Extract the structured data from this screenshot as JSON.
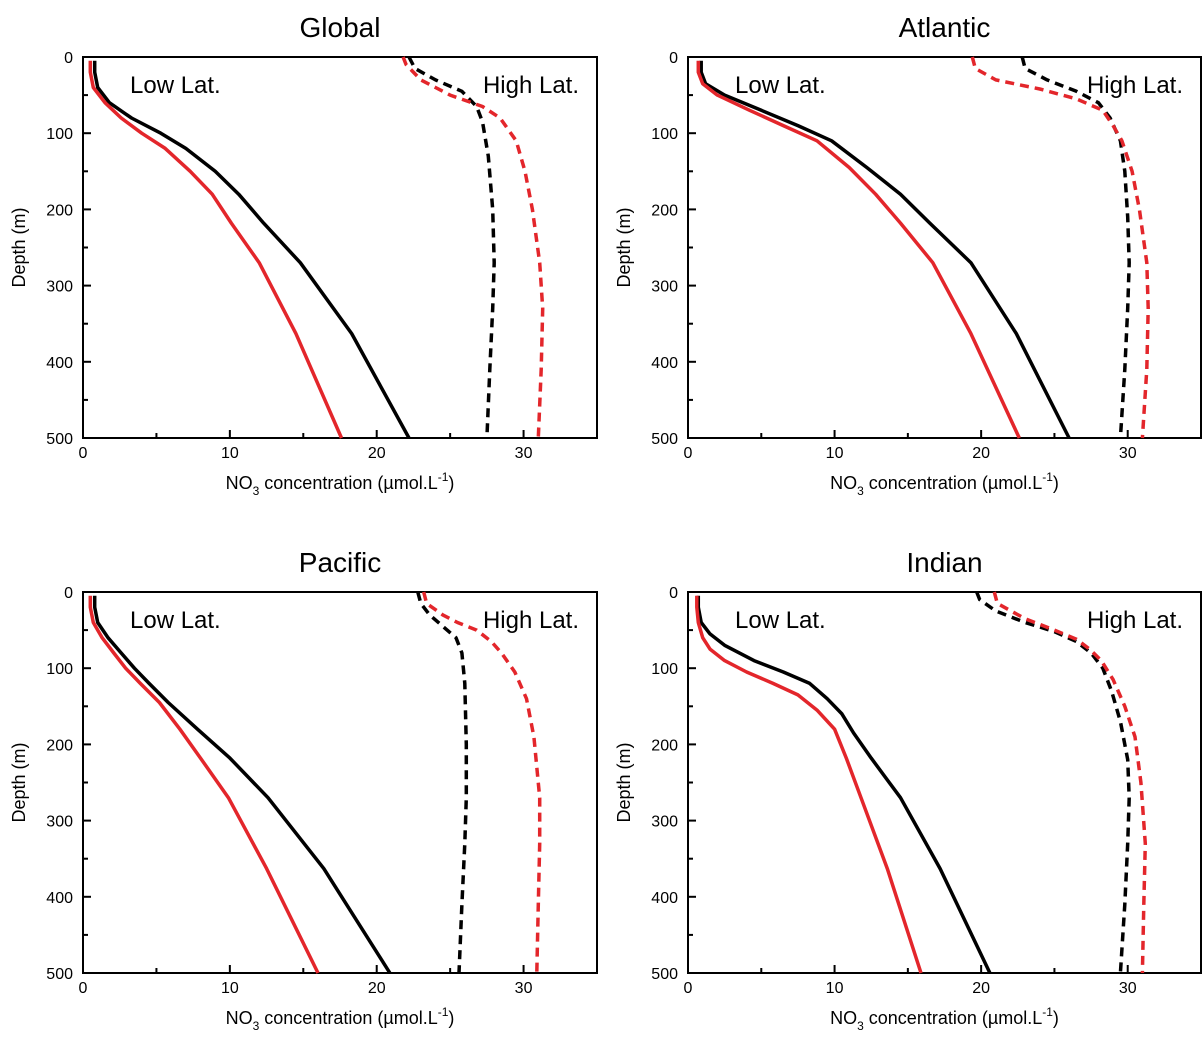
{
  "chart_data": [
    {
      "type": "line",
      "title": "Global",
      "xlabel": "NO3 concentration (µmol.L-1)",
      "ylabel": "Depth (m)",
      "xlim": [
        0,
        35
      ],
      "ylim": [
        500,
        0
      ],
      "y_inverted": true,
      "xticks": [
        0,
        10,
        20,
        30
      ],
      "yticks": [
        0,
        100,
        200,
        300,
        400,
        500
      ],
      "grid": false,
      "legend": null,
      "annotations": [
        "Low Lat.",
        "High Lat."
      ],
      "series": [
        {
          "color": "#000000",
          "dashed": false,
          "points": [
            [
              0.8,
              5
            ],
            [
              0.8,
              20
            ],
            [
              1.0,
              40
            ],
            [
              1.8,
              60
            ],
            [
              3.3,
              80
            ],
            [
              5.3,
              100
            ],
            [
              7.0,
              120
            ],
            [
              9.0,
              150
            ],
            [
              10.6,
              180
            ],
            [
              12.3,
              218
            ],
            [
              14.8,
              270
            ],
            [
              18.3,
              363
            ],
            [
              22.2,
              500
            ]
          ]
        },
        {
          "color": "#e3262b",
          "dashed": false,
          "points": [
            [
              0.5,
              5
            ],
            [
              0.5,
              20
            ],
            [
              0.7,
              40
            ],
            [
              1.5,
              60
            ],
            [
              2.6,
              80
            ],
            [
              4.0,
              100
            ],
            [
              5.6,
              120
            ],
            [
              7.3,
              150
            ],
            [
              8.8,
              180
            ],
            [
              10.1,
              218
            ],
            [
              12.0,
              270
            ],
            [
              14.5,
              363
            ],
            [
              17.6,
              500
            ]
          ]
        },
        {
          "color": "#000000",
          "dashed": true,
          "points": [
            [
              22.2,
              0
            ],
            [
              22.6,
              15
            ],
            [
              24.0,
              30
            ],
            [
              25.8,
              45
            ],
            [
              26.8,
              65
            ],
            [
              27.2,
              85
            ],
            [
              27.6,
              130
            ],
            [
              27.9,
              200
            ],
            [
              28.0,
              270
            ],
            [
              27.9,
              330
            ],
            [
              27.7,
              410
            ],
            [
              27.5,
              500
            ]
          ]
        },
        {
          "color": "#e3262b",
          "dashed": true,
          "points": [
            [
              21.8,
              0
            ],
            [
              22.0,
              10
            ],
            [
              23.0,
              30
            ],
            [
              24.0,
              40
            ],
            [
              25.0,
              50
            ],
            [
              27.2,
              65
            ],
            [
              28.4,
              80
            ],
            [
              29.5,
              110
            ],
            [
              30.1,
              150
            ],
            [
              30.6,
              200
            ],
            [
              31.1,
              270
            ],
            [
              31.3,
              330
            ],
            [
              31.2,
              410
            ],
            [
              31.0,
              500
            ]
          ]
        }
      ]
    },
    {
      "type": "line",
      "title": "Atlantic",
      "xlabel": "NO3 concentration (µmol.L-1)",
      "ylabel": "Depth (m)",
      "xlim": [
        0,
        35
      ],
      "ylim": [
        500,
        0
      ],
      "y_inverted": true,
      "xticks": [
        0,
        10,
        20,
        30
      ],
      "yticks": [
        0,
        100,
        200,
        300,
        400,
        500
      ],
      "grid": false,
      "legend": null,
      "annotations": [
        "Low Lat.",
        "High Lat."
      ],
      "series": [
        {
          "color": "#000000",
          "dashed": false,
          "points": [
            [
              0.9,
              5
            ],
            [
              0.9,
              20
            ],
            [
              1.2,
              35
            ],
            [
              2.5,
              50
            ],
            [
              5.0,
              70
            ],
            [
              7.5,
              90
            ],
            [
              9.8,
              110
            ],
            [
              12.2,
              145
            ],
            [
              14.5,
              180
            ],
            [
              16.5,
              218
            ],
            [
              19.3,
              270
            ],
            [
              22.4,
              363
            ],
            [
              26.0,
              500
            ]
          ]
        },
        {
          "color": "#e3262b",
          "dashed": false,
          "points": [
            [
              0.7,
              5
            ],
            [
              0.7,
              20
            ],
            [
              1.0,
              35
            ],
            [
              2.0,
              50
            ],
            [
              4.2,
              70
            ],
            [
              6.5,
              90
            ],
            [
              8.8,
              110
            ],
            [
              11.0,
              145
            ],
            [
              12.8,
              180
            ],
            [
              14.5,
              218
            ],
            [
              16.7,
              270
            ],
            [
              19.3,
              363
            ],
            [
              22.6,
              500
            ]
          ]
        },
        {
          "color": "#000000",
          "dashed": true,
          "points": [
            [
              22.8,
              0
            ],
            [
              23.0,
              15
            ],
            [
              24.5,
              30
            ],
            [
              26.5,
              45
            ],
            [
              28.0,
              60
            ],
            [
              28.8,
              80
            ],
            [
              29.5,
              110
            ],
            [
              29.8,
              150
            ],
            [
              30.0,
              210
            ],
            [
              30.1,
              270
            ],
            [
              30.0,
              330
            ],
            [
              29.8,
              410
            ],
            [
              29.5,
              500
            ]
          ]
        },
        {
          "color": "#e3262b",
          "dashed": true,
          "points": [
            [
              19.4,
              0
            ],
            [
              19.6,
              15
            ],
            [
              21.0,
              30
            ],
            [
              24.0,
              42
            ],
            [
              26.5,
              55
            ],
            [
              28.3,
              70
            ],
            [
              29.0,
              90
            ],
            [
              29.6,
              110
            ],
            [
              30.3,
              150
            ],
            [
              30.8,
              200
            ],
            [
              31.3,
              270
            ],
            [
              31.4,
              330
            ],
            [
              31.3,
              410
            ],
            [
              31.0,
              500
            ]
          ]
        }
      ]
    },
    {
      "type": "line",
      "title": "Pacific",
      "xlabel": "NO3 concentration (µmol.L-1)",
      "ylabel": "Depth (m)",
      "xlim": [
        0,
        35
      ],
      "ylim": [
        500,
        0
      ],
      "y_inverted": true,
      "xticks": [
        0,
        10,
        20,
        30
      ],
      "yticks": [
        0,
        100,
        200,
        300,
        400,
        500
      ],
      "grid": false,
      "legend": null,
      "annotations": [
        "Low Lat.",
        "High Lat."
      ],
      "series": [
        {
          "color": "#000000",
          "dashed": false,
          "points": [
            [
              0.8,
              5
            ],
            [
              0.8,
              20
            ],
            [
              1.0,
              40
            ],
            [
              1.7,
              60
            ],
            [
              2.6,
              80
            ],
            [
              3.5,
              100
            ],
            [
              4.5,
              120
            ],
            [
              5.8,
              145
            ],
            [
              7.8,
              180
            ],
            [
              10.0,
              218
            ],
            [
              12.6,
              270
            ],
            [
              16.4,
              363
            ],
            [
              20.9,
              500
            ]
          ]
        },
        {
          "color": "#e3262b",
          "dashed": false,
          "points": [
            [
              0.5,
              5
            ],
            [
              0.5,
              20
            ],
            [
              0.7,
              40
            ],
            [
              1.3,
              60
            ],
            [
              2.1,
              80
            ],
            [
              2.9,
              100
            ],
            [
              3.9,
              120
            ],
            [
              5.2,
              145
            ],
            [
              6.6,
              180
            ],
            [
              8.0,
              218
            ],
            [
              9.9,
              270
            ],
            [
              12.5,
              363
            ],
            [
              16.0,
              500
            ]
          ]
        },
        {
          "color": "#000000",
          "dashed": true,
          "points": [
            [
              22.8,
              0
            ],
            [
              23.0,
              15
            ],
            [
              23.6,
              30
            ],
            [
              24.5,
              45
            ],
            [
              25.4,
              60
            ],
            [
              25.8,
              80
            ],
            [
              26.0,
              120
            ],
            [
              26.1,
              200
            ],
            [
              26.1,
              270
            ],
            [
              26.0,
              330
            ],
            [
              25.8,
              410
            ],
            [
              25.6,
              500
            ]
          ]
        },
        {
          "color": "#e3262b",
          "dashed": true,
          "points": [
            [
              23.2,
              0
            ],
            [
              23.4,
              15
            ],
            [
              24.5,
              30
            ],
            [
              25.5,
              40
            ],
            [
              26.8,
              50
            ],
            [
              27.8,
              65
            ],
            [
              28.5,
              80
            ],
            [
              29.4,
              105
            ],
            [
              30.2,
              140
            ],
            [
              30.7,
              190
            ],
            [
              31.1,
              270
            ],
            [
              31.1,
              330
            ],
            [
              31.0,
              410
            ],
            [
              30.9,
              500
            ]
          ]
        }
      ]
    },
    {
      "type": "line",
      "title": "Indian",
      "xlabel": "NO3 concentration (µmol.L-1)",
      "ylabel": "Depth (m)",
      "xlim": [
        0,
        35
      ],
      "ylim": [
        500,
        0
      ],
      "y_inverted": true,
      "xticks": [
        0,
        10,
        20,
        30
      ],
      "yticks": [
        0,
        100,
        200,
        300,
        400,
        500
      ],
      "grid": false,
      "legend": null,
      "annotations": [
        "Low Lat.",
        "High Lat."
      ],
      "series": [
        {
          "color": "#000000",
          "dashed": false,
          "points": [
            [
              0.7,
              5
            ],
            [
              0.7,
              20
            ],
            [
              0.9,
              40
            ],
            [
              1.5,
              55
            ],
            [
              2.5,
              70
            ],
            [
              4.5,
              90
            ],
            [
              6.5,
              105
            ],
            [
              8.3,
              120
            ],
            [
              9.5,
              140
            ],
            [
              10.5,
              160
            ],
            [
              11.3,
              185
            ],
            [
              12.5,
              218
            ],
            [
              14.5,
              270
            ],
            [
              17.2,
              363
            ],
            [
              20.6,
              500
            ]
          ]
        },
        {
          "color": "#e3262b",
          "dashed": false,
          "points": [
            [
              0.6,
              5
            ],
            [
              0.6,
              20
            ],
            [
              0.7,
              40
            ],
            [
              1.0,
              60
            ],
            [
              1.5,
              75
            ],
            [
              2.5,
              90
            ],
            [
              4.0,
              105
            ],
            [
              5.8,
              120
            ],
            [
              7.5,
              135
            ],
            [
              8.8,
              155
            ],
            [
              10.0,
              180
            ],
            [
              10.8,
              218
            ],
            [
              11.8,
              270
            ],
            [
              13.6,
              363
            ],
            [
              15.9,
              500
            ]
          ]
        },
        {
          "color": "#000000",
          "dashed": true,
          "points": [
            [
              19.7,
              0
            ],
            [
              19.9,
              10
            ],
            [
              21.0,
              25
            ],
            [
              23.0,
              40
            ],
            [
              25.0,
              52
            ],
            [
              26.5,
              65
            ],
            [
              27.5,
              80
            ],
            [
              28.3,
              100
            ],
            [
              28.9,
              130
            ],
            [
              29.5,
              170
            ],
            [
              30.0,
              220
            ],
            [
              30.1,
              270
            ],
            [
              30.0,
              330
            ],
            [
              29.8,
              410
            ],
            [
              29.5,
              500
            ]
          ]
        },
        {
          "color": "#e3262b",
          "dashed": true,
          "points": [
            [
              20.9,
              0
            ],
            [
              21.1,
              15
            ],
            [
              23.0,
              35
            ],
            [
              25.0,
              50
            ],
            [
              26.5,
              62
            ],
            [
              27.4,
              75
            ],
            [
              28.2,
              90
            ],
            [
              29.0,
              115
            ],
            [
              29.8,
              150
            ],
            [
              30.5,
              190
            ],
            [
              30.9,
              250
            ],
            [
              31.2,
              330
            ],
            [
              31.1,
              410
            ],
            [
              31.0,
              500
            ]
          ]
        }
      ]
    }
  ],
  "text": {
    "low_lat": "Low Lat.",
    "high_lat": "High Lat.",
    "ylabel": "Depth (m)",
    "xlabel_prefix": "NO",
    "xlabel_sub": "3",
    "xlabel_main": " concentration (µmol.L",
    "xlabel_sup": "-1",
    "xlabel_end": ")"
  }
}
